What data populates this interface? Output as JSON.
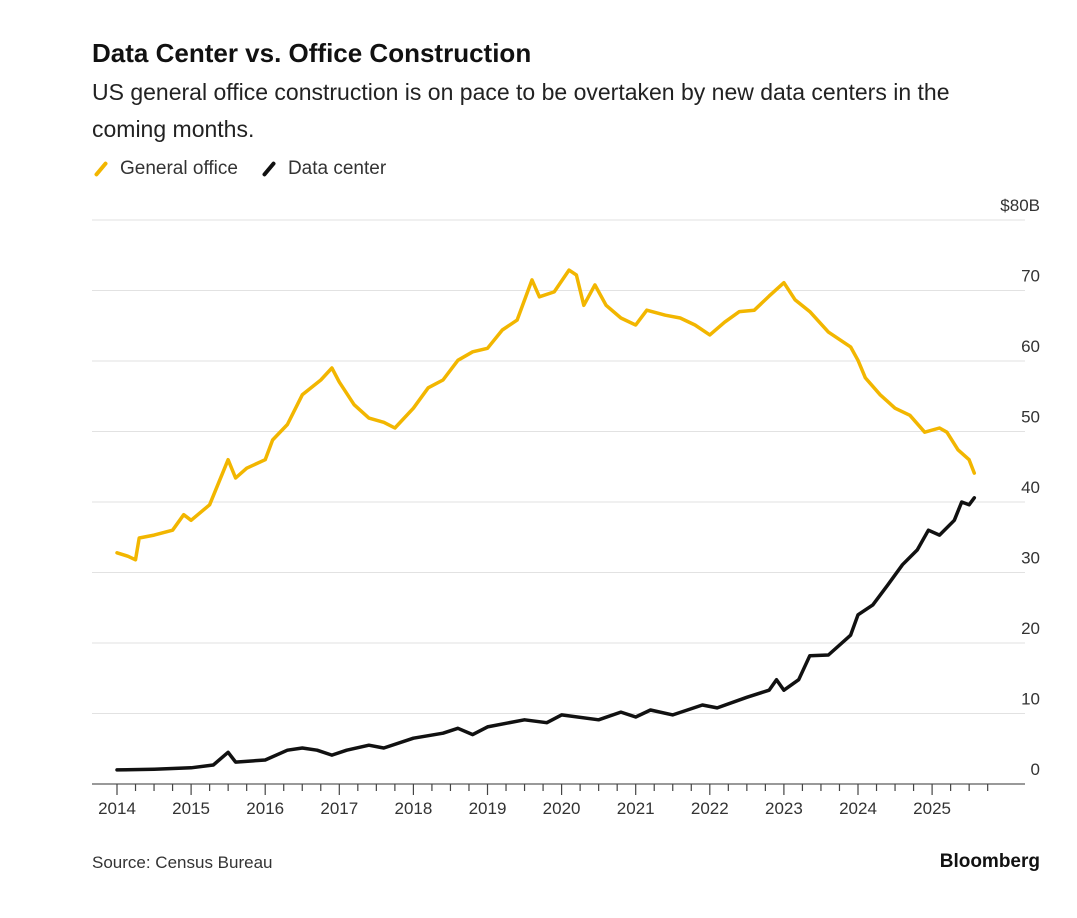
{
  "chart_data": {
    "type": "line",
    "title": "Data Center vs. Office Construction",
    "subtitle": "US general office construction is on pace to be overtaken by new data centers in the coming months.",
    "source": "Source: Census Bureau",
    "brand": "Bloomberg",
    "ylim": [
      0,
      80
    ],
    "xlim": [
      2013.7,
      2026.2
    ],
    "y_ticks": [
      0,
      10,
      20,
      30,
      40,
      50,
      60,
      70,
      80
    ],
    "y_tick_labels": [
      "0",
      "10",
      "20",
      "30",
      "40",
      "50",
      "60",
      "70",
      "$80B"
    ],
    "x_ticks": [
      2014,
      2015,
      2016,
      2017,
      2018,
      2019,
      2020,
      2021,
      2022,
      2023,
      2024,
      2025
    ],
    "x_tick_labels": [
      "2014",
      "2015",
      "2016",
      "2017",
      "2018",
      "2019",
      "2020",
      "2021",
      "2022",
      "2023",
      "2024",
      "2025"
    ],
    "grid": true,
    "legend_position": "top-left",
    "series": [
      {
        "name": "General office",
        "color": "#f2b600",
        "x": [
          2014.0,
          2014.15,
          2014.25,
          2014.3,
          2014.5,
          2014.75,
          2014.9,
          2015.0,
          2015.25,
          2015.5,
          2015.6,
          2015.75,
          2016.0,
          2016.1,
          2016.3,
          2016.5,
          2016.75,
          2016.9,
          2017.0,
          2017.2,
          2017.4,
          2017.6,
          2017.75,
          2018.0,
          2018.2,
          2018.4,
          2018.6,
          2018.8,
          2019.0,
          2019.2,
          2019.4,
          2019.6,
          2019.7,
          2019.9,
          2020.1,
          2020.2,
          2020.3,
          2020.45,
          2020.6,
          2020.8,
          2021.0,
          2021.15,
          2021.4,
          2021.6,
          2021.8,
          2022.0,
          2022.2,
          2022.4,
          2022.6,
          2022.8,
          2023.0,
          2023.15,
          2023.35,
          2023.6,
          2023.9,
          2024.0,
          2024.1,
          2024.3,
          2024.5,
          2024.7,
          2024.9,
          2025.1,
          2025.2,
          2025.35,
          2025.5,
          2025.57
        ],
        "values": [
          32.8,
          32.3,
          31.8,
          34.9,
          35.3,
          36,
          38.2,
          37.4,
          39.6,
          46,
          43.4,
          44.8,
          46,
          48.8,
          51,
          55.2,
          57.3,
          59,
          57,
          53.8,
          51.9,
          51.3,
          50.5,
          53.3,
          56.2,
          57.3,
          60.1,
          61.3,
          61.8,
          64.4,
          65.8,
          71.5,
          69.1,
          69.8,
          72.9,
          72.2,
          67.9,
          70.8,
          67.9,
          66.1,
          65.1,
          67.2,
          66.5,
          66.1,
          65.1,
          63.7,
          65.5,
          67,
          67.2,
          69.2,
          71.1,
          68.7,
          67,
          64.1,
          62,
          60.1,
          57.6,
          55.2,
          53.3,
          52.3,
          49.9,
          50.5,
          49.9,
          47.4,
          46,
          44.1
        ]
      },
      {
        "name": "Data center",
        "color": "#111111",
        "x": [
          2014.0,
          2014.5,
          2015.0,
          2015.3,
          2015.5,
          2015.6,
          2016.0,
          2016.3,
          2016.5,
          2016.7,
          2016.9,
          2017.1,
          2017.4,
          2017.6,
          2018.0,
          2018.4,
          2018.6,
          2018.8,
          2019.0,
          2019.5,
          2019.8,
          2020.0,
          2020.5,
          2020.8,
          2021.0,
          2021.2,
          2021.5,
          2021.9,
          2022.1,
          2022.5,
          2022.8,
          2022.9,
          2023.0,
          2023.2,
          2023.35,
          2023.6,
          2023.9,
          2024.0,
          2024.2,
          2024.4,
          2024.6,
          2024.8,
          2024.95,
          2025.1,
          2025.3,
          2025.4,
          2025.5,
          2025.57
        ],
        "values": [
          2.0,
          2.1,
          2.3,
          2.7,
          4.5,
          3.1,
          3.4,
          4.8,
          5.1,
          4.8,
          4.1,
          4.8,
          5.5,
          5.1,
          6.5,
          7.2,
          7.9,
          7,
          8.1,
          9.1,
          8.7,
          9.8,
          9.1,
          10.2,
          9.5,
          10.5,
          9.8,
          11.2,
          10.8,
          12.3,
          13.3,
          14.8,
          13.3,
          14.8,
          18.2,
          18.3,
          21.1,
          24,
          25.4,
          28.2,
          31.1,
          33.2,
          36,
          35.3,
          37.4,
          40,
          39.6,
          40.6
        ]
      }
    ]
  }
}
